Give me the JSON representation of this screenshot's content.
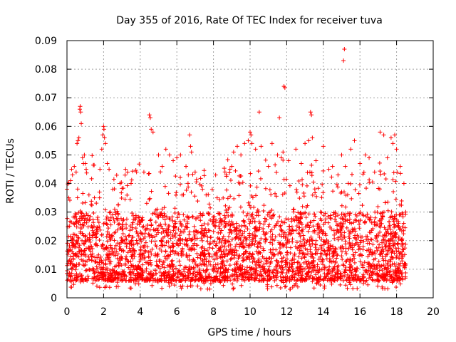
{
  "chart_data": {
    "type": "scatter",
    "title": "Day 355 of 2016, Rate Of TEC Index for receiver tuva",
    "xlabel": "GPS time / hours",
    "ylabel": "ROTI / TECUs",
    "xlim": [
      0,
      20
    ],
    "ylim": [
      0,
      0.09
    ],
    "xticks": [
      "0",
      "2",
      "4",
      "6",
      "8",
      "10",
      "12",
      "14",
      "16",
      "18",
      "20"
    ],
    "yticks": [
      "0",
      "0.01",
      "0.02",
      "0.03",
      "0.04",
      "0.05",
      "0.06",
      "0.07",
      "0.08",
      "0.09"
    ],
    "grid": true,
    "marker": "+",
    "color": "#ff0000",
    "data_range_hours": [
      0,
      18.5
    ],
    "series": [
      {
        "name": "ROTI",
        "points": [
          [
            0.0,
            0.038
          ],
          [
            0.05,
            0.012
          ],
          [
            0.1,
            0.035
          ],
          [
            0.2,
            0.041
          ],
          [
            0.25,
            0.045
          ],
          [
            0.3,
            0.043
          ],
          [
            0.4,
            0.046
          ],
          [
            0.5,
            0.044
          ],
          [
            0.55,
            0.054
          ],
          [
            0.6,
            0.055
          ],
          [
            0.65,
            0.056
          ],
          [
            0.7,
            0.066
          ],
          [
            0.72,
            0.067
          ],
          [
            0.75,
            0.065
          ],
          [
            0.78,
            0.061
          ],
          [
            0.85,
            0.049
          ],
          [
            0.9,
            0.047
          ],
          [
            0.95,
            0.05
          ],
          [
            1.0,
            0.047
          ],
          [
            1.05,
            0.045
          ],
          [
            1.2,
            0.036
          ],
          [
            1.5,
            0.035
          ],
          [
            1.8,
            0.045
          ],
          [
            1.9,
            0.052
          ],
          [
            1.95,
            0.057
          ],
          [
            2.0,
            0.06
          ],
          [
            2.02,
            0.059
          ],
          [
            2.05,
            0.056
          ],
          [
            2.1,
            0.054
          ],
          [
            2.2,
            0.047
          ],
          [
            2.3,
            0.045
          ],
          [
            2.5,
            0.038
          ],
          [
            2.9,
            0.04
          ],
          [
            3.2,
            0.045
          ],
          [
            3.5,
            0.04
          ],
          [
            3.8,
            0.044
          ],
          [
            4.2,
            0.044
          ],
          [
            4.5,
            0.064
          ],
          [
            4.55,
            0.063
          ],
          [
            4.6,
            0.059
          ],
          [
            4.7,
            0.058
          ],
          [
            5.0,
            0.05
          ],
          [
            5.2,
            0.046
          ],
          [
            5.4,
            0.052
          ],
          [
            5.6,
            0.05
          ],
          [
            5.8,
            0.048
          ],
          [
            6.0,
            0.049
          ],
          [
            6.2,
            0.05
          ],
          [
            6.5,
            0.046
          ],
          [
            6.7,
            0.057
          ],
          [
            6.75,
            0.053
          ],
          [
            6.8,
            0.051
          ],
          [
            7.0,
            0.044
          ],
          [
            7.4,
            0.038
          ],
          [
            7.6,
            0.036
          ],
          [
            8.2,
            0.035
          ],
          [
            8.7,
            0.043
          ],
          [
            8.9,
            0.045
          ],
          [
            9.0,
            0.046
          ],
          [
            9.1,
            0.051
          ],
          [
            9.3,
            0.053
          ],
          [
            9.5,
            0.05
          ],
          [
            9.7,
            0.054
          ],
          [
            9.9,
            0.055
          ],
          [
            10.0,
            0.058
          ],
          [
            10.05,
            0.057
          ],
          [
            10.1,
            0.054
          ],
          [
            10.3,
            0.052
          ],
          [
            10.5,
            0.065
          ],
          [
            10.6,
            0.053
          ],
          [
            11.0,
            0.046
          ],
          [
            11.2,
            0.054
          ],
          [
            11.5,
            0.05
          ],
          [
            11.6,
            0.063
          ],
          [
            11.7,
            0.049
          ],
          [
            11.8,
            0.051
          ],
          [
            11.85,
            0.074
          ],
          [
            11.9,
            0.0735
          ],
          [
            12.1,
            0.048
          ],
          [
            12.5,
            0.052
          ],
          [
            12.8,
            0.047
          ],
          [
            13.0,
            0.054
          ],
          [
            13.2,
            0.055
          ],
          [
            13.3,
            0.065
          ],
          [
            13.35,
            0.064
          ],
          [
            13.4,
            0.056
          ],
          [
            13.6,
            0.048
          ],
          [
            14.0,
            0.053
          ],
          [
            14.3,
            0.045
          ],
          [
            14.5,
            0.046
          ],
          [
            14.8,
            0.043
          ],
          [
            15.0,
            0.05
          ],
          [
            15.1,
            0.083
          ],
          [
            15.15,
            0.087
          ],
          [
            15.2,
            0.046
          ],
          [
            15.5,
            0.052
          ],
          [
            15.7,
            0.055
          ],
          [
            16.0,
            0.047
          ],
          [
            16.3,
            0.05
          ],
          [
            16.5,
            0.049
          ],
          [
            16.8,
            0.044
          ],
          [
            17.1,
            0.058
          ],
          [
            17.3,
            0.057
          ],
          [
            17.5,
            0.049
          ],
          [
            17.7,
            0.056
          ],
          [
            17.8,
            0.054
          ],
          [
            17.9,
            0.057
          ],
          [
            18.0,
            0.052
          ],
          [
            18.2,
            0.046
          ],
          [
            18.4,
            0.04
          ],
          [
            18.5,
            0.03
          ]
        ]
      }
    ]
  }
}
